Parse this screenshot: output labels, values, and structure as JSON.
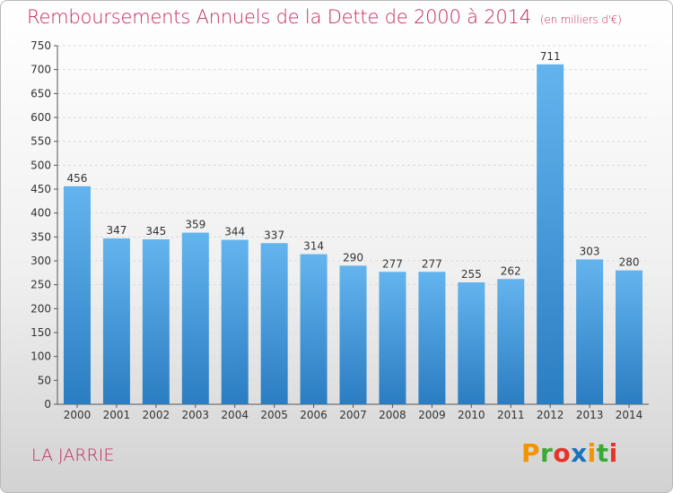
{
  "header": {
    "title": "Remboursements Annuels de la Dette de 2000 à 2014",
    "units": "(en milliers d'€)"
  },
  "footer": {
    "commune": "LA JARRIE",
    "logo": "Proxiti"
  },
  "colors": {
    "title": "#c4285e",
    "bar_top": "#63b4ee",
    "bar_bottom": "#2b7dc2"
  },
  "chart_data": {
    "type": "bar",
    "categories": [
      "2000",
      "2001",
      "2002",
      "2003",
      "2004",
      "2005",
      "2006",
      "2007",
      "2008",
      "2009",
      "2010",
      "2011",
      "2012",
      "2013",
      "2014"
    ],
    "values": [
      456,
      347,
      345,
      359,
      344,
      337,
      314,
      290,
      277,
      277,
      255,
      262,
      711,
      303,
      280
    ],
    "ylim": [
      0,
      750
    ],
    "yticks": [
      0,
      50,
      100,
      150,
      200,
      250,
      300,
      350,
      400,
      450,
      500,
      550,
      600,
      650,
      700,
      750
    ],
    "grid": true,
    "data_labels": true
  }
}
